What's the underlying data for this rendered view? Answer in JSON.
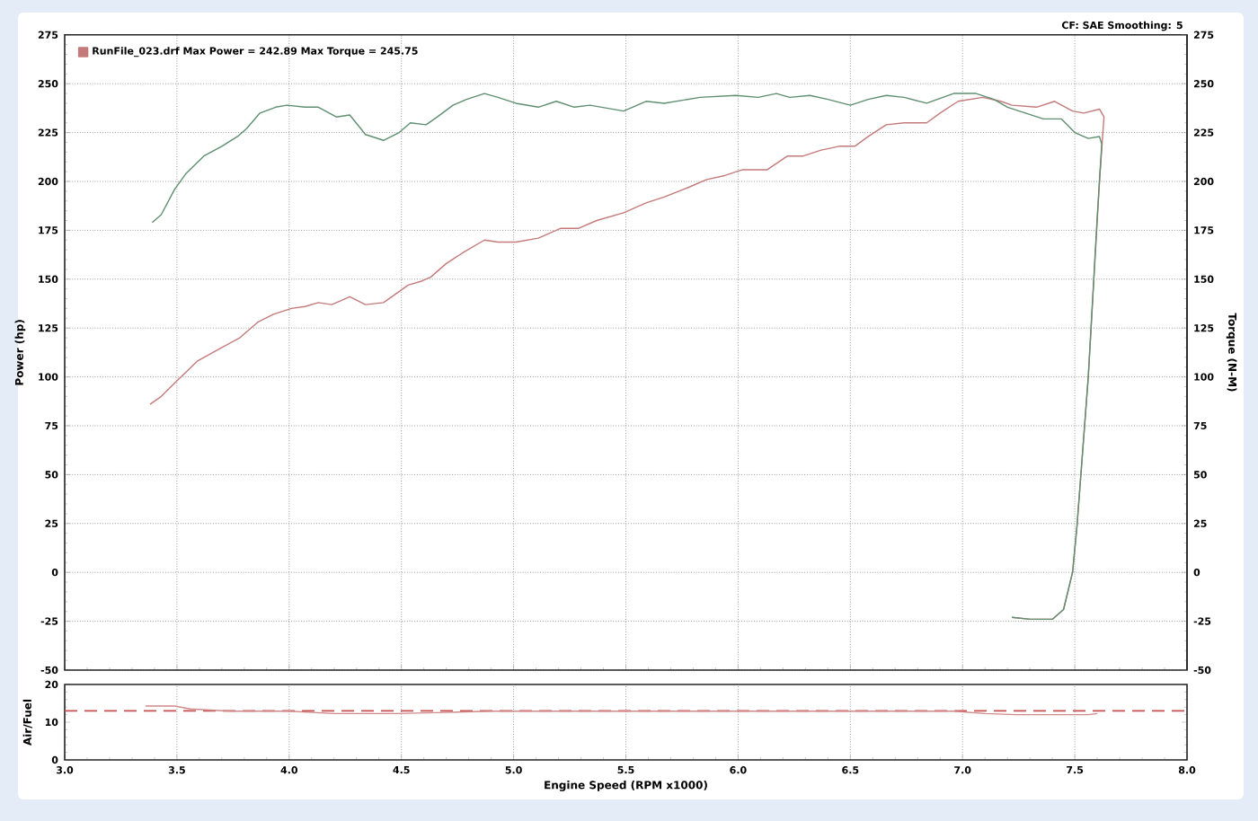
{
  "chart_data": [
    {
      "type": "line",
      "ylabel": "Power (hp)",
      "y2label": "Torque (N-M)",
      "annotations": [
        "CF: SAE Smoothing: 5"
      ],
      "xlim": [
        3,
        8
      ],
      "xticks": [
        3,
        3.5,
        4,
        4.5,
        5,
        5.5,
        6,
        6.5,
        7,
        7.5,
        8
      ],
      "ylim": [
        -50,
        275
      ],
      "yticks": [
        -50,
        -25,
        0,
        25,
        50,
        75,
        100,
        125,
        150,
        175,
        200,
        225,
        250,
        275
      ],
      "y2lim": [
        -50,
        275
      ],
      "y2ticks": [
        -50,
        -25,
        0,
        25,
        50,
        75,
        100,
        125,
        150,
        175,
        200,
        225,
        250,
        275
      ],
      "tick_labels": "y",
      "grid": true,
      "legend": "top left",
      "series": [
        {
          "name": "RunFile_023.drf Max Power = 242.89 Max Torque = 245.75",
          "color": "#c47a7a",
          "x": [
            3.38,
            3.43,
            3.5,
            3.59,
            3.7,
            3.78,
            3.86,
            3.93,
            4.01,
            4.07,
            4.13,
            4.19,
            4.27,
            4.34,
            4.42,
            4.47,
            4.53,
            4.59,
            4.63,
            4.7,
            4.78,
            4.87,
            4.93,
            5.01,
            5.11,
            5.21,
            5.29,
            5.37,
            5.49,
            5.59,
            5.67,
            5.78,
            5.86,
            5.94,
            6.02,
            6.13,
            6.22,
            6.29,
            6.37,
            6.45,
            6.52,
            6.58,
            6.66,
            6.74,
            6.84,
            6.9,
            6.98,
            7.09,
            7.17,
            7.22,
            7.33,
            7.41,
            7.49,
            7.54,
            7.61,
            7.63,
            7.61,
            7.56,
            7.51,
            7.49,
            7.45,
            7.4,
            7.3,
            7.22
          ],
          "values": [
            86,
            90,
            98,
            108,
            115,
            120,
            128,
            132,
            135,
            136,
            138,
            137,
            141,
            137,
            138,
            142,
            147,
            149,
            151,
            158,
            164,
            170,
            169,
            169,
            171,
            176,
            176,
            180,
            184,
            189,
            192,
            197,
            201,
            203,
            206,
            206,
            213,
            213,
            216,
            218,
            218,
            223,
            229,
            230,
            230,
            235,
            241,
            243,
            241,
            239,
            238,
            241,
            236,
            235,
            237,
            233,
            200,
            100,
            24,
            0,
            -19,
            -24,
            -24,
            -23
          ]
        },
        {
          "color": "#5f8f70",
          "axis": "y2",
          "x": [
            3.39,
            3.43,
            3.49,
            3.54,
            3.62,
            3.7,
            3.77,
            3.81,
            3.87,
            3.94,
            3.99,
            4.07,
            4.13,
            4.21,
            4.27,
            4.34,
            4.42,
            4.49,
            4.54,
            4.61,
            4.66,
            4.73,
            4.79,
            4.87,
            4.93,
            5.01,
            5.11,
            5.19,
            5.27,
            5.34,
            5.49,
            5.59,
            5.67,
            5.83,
            5.99,
            6.09,
            6.17,
            6.23,
            6.32,
            6.4,
            6.5,
            6.58,
            6.66,
            6.74,
            6.84,
            6.96,
            7.06,
            7.14,
            7.2,
            7.28,
            7.36,
            7.44,
            7.5,
            7.56,
            7.61,
            7.62,
            7.6,
            7.56,
            7.51,
            7.49,
            7.45,
            7.4,
            7.3,
            7.22
          ],
          "values": [
            179,
            183,
            196,
            204,
            213,
            218,
            223,
            227,
            235,
            238,
            239,
            238,
            238,
            233,
            234,
            224,
            221,
            225,
            230,
            229,
            233,
            239,
            242,
            245,
            243,
            240,
            238,
            241,
            238,
            239,
            236,
            241,
            240,
            243,
            244,
            243,
            245,
            243,
            244,
            242,
            239,
            242,
            244,
            243,
            240,
            245,
            245,
            242,
            238,
            235,
            232,
            232,
            225,
            222,
            223,
            219,
            182,
            100,
            24,
            0,
            -19,
            -24,
            -24,
            -23
          ]
        }
      ]
    },
    {
      "type": "line",
      "xlabel": "Engine Speed (RPM x1000)",
      "ylabel": "Air/Fuel",
      "xlim": [
        3,
        8
      ],
      "xticks": [
        {
          "value": 3,
          "label": "3.0"
        },
        {
          "value": 3.5,
          "label": "3.5"
        },
        {
          "value": 4,
          "label": "4.0"
        },
        {
          "value": 4.5,
          "label": "4.5"
        },
        {
          "value": 5,
          "label": "5.0"
        },
        {
          "value": 5.5,
          "label": "5.5"
        },
        {
          "value": 6,
          "label": "6.0"
        },
        {
          "value": 6.5,
          "label": "6.5"
        },
        {
          "value": 7,
          "label": "7.0"
        },
        {
          "value": 7.5,
          "label": "7.5"
        },
        {
          "value": 8,
          "label": "8.0"
        }
      ],
      "ylim": [
        0,
        20
      ],
      "yticks": [
        0,
        10,
        20
      ],
      "grid": "x",
      "ref_lines": [
        {
          "axis": "y",
          "value": 13,
          "color": "#c85050",
          "line_style": "dashed"
        }
      ],
      "series": [
        {
          "color": "#d08a8a",
          "x": [
            3.36,
            3.49,
            3.56,
            3.74,
            4.0,
            4.2,
            4.48,
            4.7,
            4.9,
            5.5,
            6.0,
            6.5,
            6.96,
            7.1,
            7.24,
            7.56,
            7.6
          ],
          "values": [
            14.3,
            14.3,
            13.5,
            12.9,
            12.9,
            12.3,
            12.3,
            12.6,
            12.9,
            12.9,
            12.9,
            12.9,
            12.9,
            12.3,
            12.0,
            12.0,
            12.3
          ]
        }
      ]
    }
  ]
}
